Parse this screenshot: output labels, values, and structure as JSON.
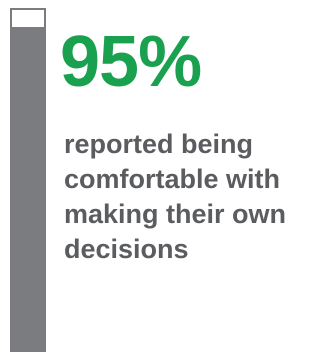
{
  "stat": {
    "value": "95%",
    "description": "reported being comfortable with making their own decisions",
    "fill_percent": 95
  },
  "colors": {
    "accent_green": "#1aa150",
    "gauge_gray": "#7b7c80",
    "text_gray": "#5b5c60"
  }
}
